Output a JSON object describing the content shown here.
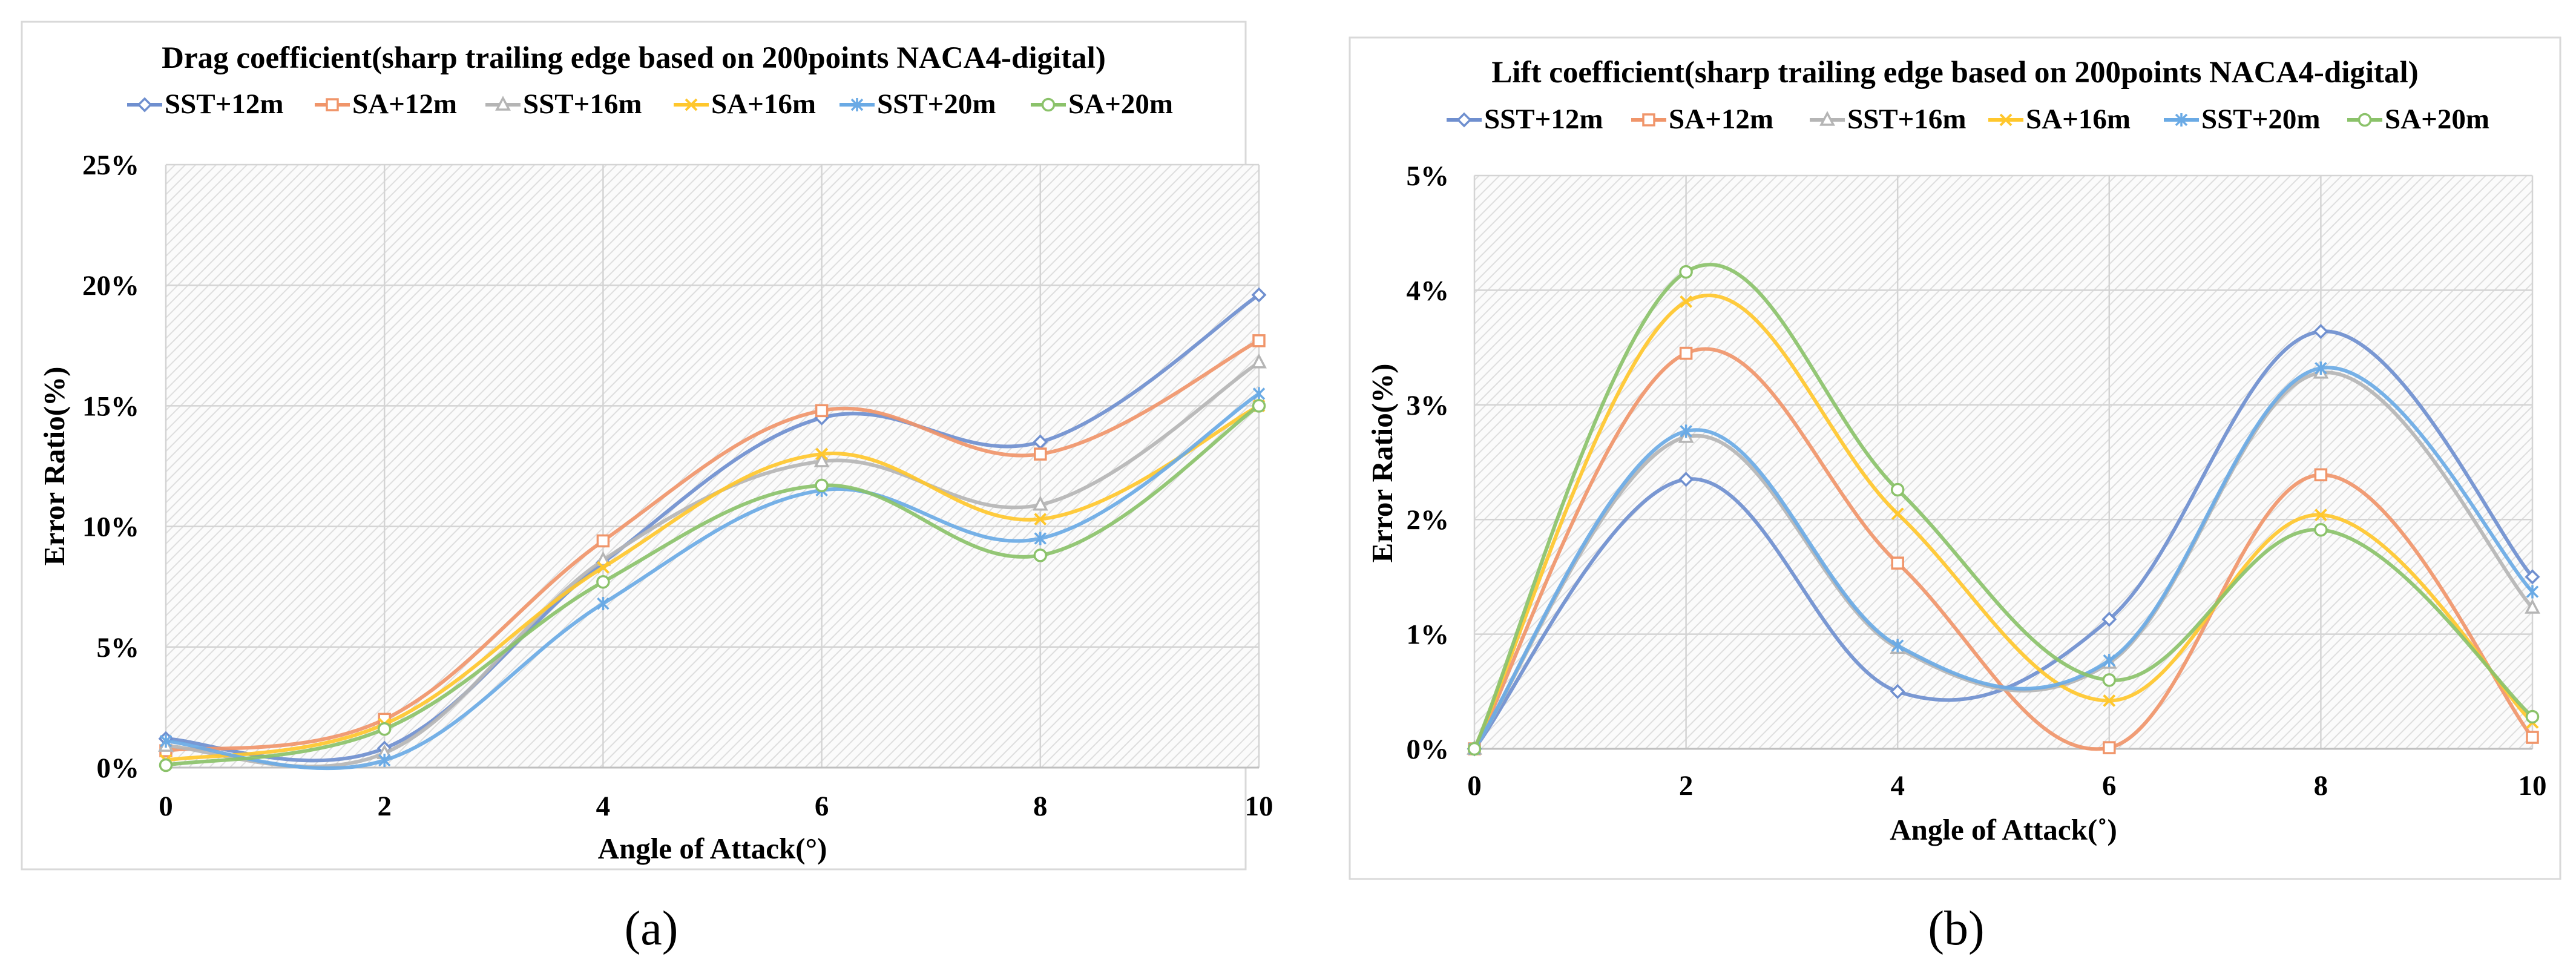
{
  "chart_data": [
    {
      "id": "a",
      "type": "line",
      "title": "Drag coefficient(sharp trailing edge based on 200points NACA4-digital)",
      "xlabel": "Angle of Attack(°)",
      "ylabel": "Error Ratio(%)",
      "caption": "(a)",
      "x": [
        0,
        2,
        4,
        6,
        8,
        10
      ],
      "xlim": [
        0,
        10
      ],
      "ylim": [
        0,
        25
      ],
      "x_ticks": [
        "0",
        "2",
        "4",
        "6",
        "8",
        "10"
      ],
      "y_ticks": [
        "0%",
        "5%",
        "10%",
        "15%",
        "20%",
        "25%"
      ],
      "y_tick_values": [
        0,
        5,
        10,
        15,
        20,
        25
      ],
      "grid": true,
      "legend_position": "top",
      "series": [
        {
          "name": "SST+12m",
          "color": "#6f8fcf",
          "marker": "diamond",
          "values": [
            1.2,
            0.8,
            8.5,
            14.5,
            13.5,
            19.6
          ]
        },
        {
          "name": "SA+12m",
          "color": "#f0956a",
          "marker": "square",
          "values": [
            0.7,
            2.0,
            9.4,
            14.8,
            13.0,
            17.7
          ]
        },
        {
          "name": "SST+16m",
          "color": "#b5b5b5",
          "marker": "triangle",
          "values": [
            0.9,
            0.6,
            8.6,
            12.7,
            10.9,
            16.8
          ]
        },
        {
          "name": "SA+16m",
          "color": "#ffc72c",
          "marker": "x",
          "values": [
            0.3,
            1.8,
            8.3,
            13.0,
            10.3,
            15.0
          ]
        },
        {
          "name": "SST+20m",
          "color": "#6aaae5",
          "marker": "star",
          "values": [
            1.1,
            0.3,
            6.8,
            11.5,
            9.5,
            15.5
          ]
        },
        {
          "name": "SA+20m",
          "color": "#8bc26a",
          "marker": "circle",
          "values": [
            0.1,
            1.6,
            7.7,
            11.7,
            8.8,
            15.0
          ]
        }
      ]
    },
    {
      "id": "b",
      "type": "line",
      "title": "Lift coefficient(sharp trailing edge based on 200points NACA4-digital)",
      "xlabel": "Angle of Attack(˚)",
      "ylabel": "Error Ratio(%)",
      "caption": "(b)",
      "x": [
        0,
        2,
        4,
        6,
        8,
        10
      ],
      "xlim": [
        0,
        10
      ],
      "ylim": [
        0,
        5
      ],
      "x_ticks": [
        "0",
        "2",
        "4",
        "6",
        "8",
        "10"
      ],
      "y_ticks": [
        "0%",
        "1%",
        "2%",
        "3%",
        "4%",
        "5%"
      ],
      "y_tick_values": [
        0,
        1,
        2,
        3,
        4,
        5
      ],
      "grid": true,
      "legend_position": "top",
      "series": [
        {
          "name": "SST+12m",
          "color": "#6f8fcf",
          "marker": "diamond",
          "values": [
            0,
            2.35,
            0.5,
            1.13,
            3.64,
            1.5
          ]
        },
        {
          "name": "SA+12m",
          "color": "#f0956a",
          "marker": "square",
          "values": [
            0,
            3.45,
            1.62,
            0.01,
            2.39,
            0.1
          ]
        },
        {
          "name": "SST+16m",
          "color": "#b5b5b5",
          "marker": "triangle",
          "values": [
            0,
            2.72,
            0.88,
            0.75,
            3.28,
            1.23
          ]
        },
        {
          "name": "SA+16m",
          "color": "#ffc72c",
          "marker": "x",
          "values": [
            0,
            3.9,
            2.05,
            0.42,
            2.04,
            0.23
          ]
        },
        {
          "name": "SST+20m",
          "color": "#6aaae5",
          "marker": "star",
          "values": [
            0,
            2.77,
            0.9,
            0.77,
            3.32,
            1.37
          ]
        },
        {
          "name": "SA+20m",
          "color": "#8bc26a",
          "marker": "circle",
          "values": [
            0,
            4.16,
            2.26,
            0.6,
            1.91,
            0.28
          ]
        }
      ]
    }
  ]
}
